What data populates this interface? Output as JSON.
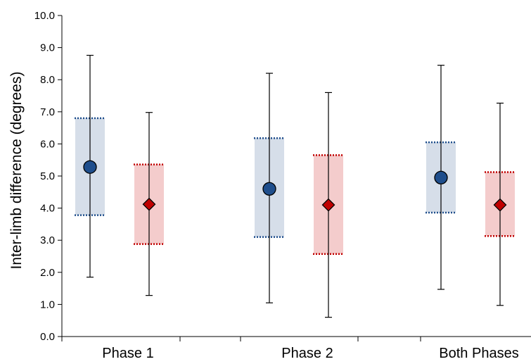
{
  "chart_data": {
    "type": "box",
    "categories": [
      "Phase 1",
      "Phase 2",
      "Both Phases"
    ],
    "ylabel": "Inter-limb difference (degrees)",
    "xlabel": "",
    "ylim": [
      0,
      10
    ],
    "yticks": [
      "0.0",
      "1.0",
      "2.0",
      "3.0",
      "4.0",
      "5.0",
      "6.0",
      "7.0",
      "8.0",
      "9.0",
      "10.0"
    ],
    "series": [
      {
        "marker": "circle",
        "color": "#1f4e8c",
        "band_color": "#d6dee9",
        "mean": [
          5.28,
          4.6,
          4.95
        ],
        "band_low": [
          3.78,
          3.1,
          3.86
        ],
        "band_high": [
          6.8,
          6.18,
          6.05
        ],
        "whisker_low": [
          1.85,
          1.05,
          1.47
        ],
        "whisker_high": [
          8.76,
          8.2,
          8.45
        ]
      },
      {
        "marker": "diamond",
        "color": "#c00000",
        "band_color": "#f4cccc",
        "mean": [
          4.12,
          4.1,
          4.1
        ],
        "band_low": [
          2.88,
          2.57,
          3.13
        ],
        "band_high": [
          5.36,
          5.65,
          5.12
        ],
        "whisker_low": [
          1.28,
          0.6,
          0.97
        ],
        "whisker_high": [
          6.98,
          7.6,
          7.27
        ]
      }
    ],
    "grid": false,
    "legend": "none"
  }
}
